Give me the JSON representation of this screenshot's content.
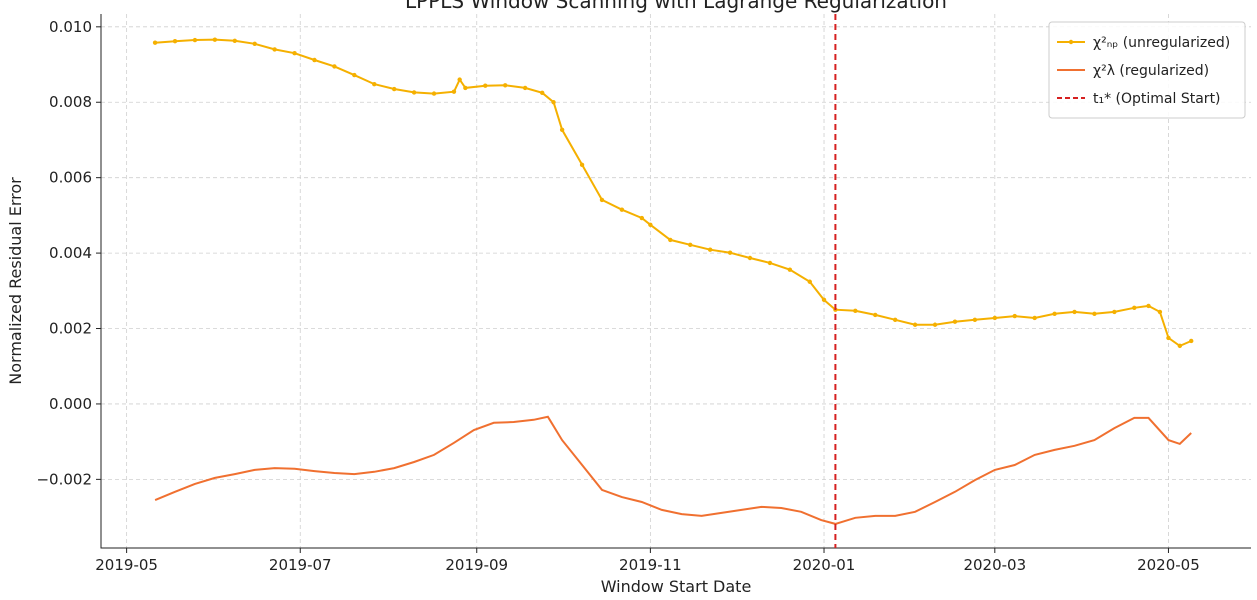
{
  "chart_data": {
    "type": "line",
    "title": "LPPLS Window Scanning with Lagrange Regularization",
    "x_label": "Window Start Date",
    "y_label": "Normalized Residual Error",
    "xlim": [
      "2019-04-22",
      "2020-05-30"
    ],
    "xticks": [
      {
        "value": "2019-05-01",
        "label": "2019-05"
      },
      {
        "value": "2019-07-01",
        "label": "2019-07"
      },
      {
        "value": "2019-09-01",
        "label": "2019-09"
      },
      {
        "value": "2019-11-01",
        "label": "2019-11"
      },
      {
        "value": "2020-01-01",
        "label": "2020-01"
      },
      {
        "value": "2020-03-01",
        "label": "2020-03"
      },
      {
        "value": "2020-05-01",
        "label": "2020-05"
      }
    ],
    "ylim": [
      -0.00382,
      0.01034
    ],
    "yticks": [
      {
        "value": -0.002,
        "label": "−0.002"
      },
      {
        "value": 0,
        "label": "0.000"
      },
      {
        "value": 0.002,
        "label": "0.002"
      },
      {
        "value": 0.004,
        "label": "0.004"
      },
      {
        "value": 0.006,
        "label": "0.006"
      },
      {
        "value": 0.008,
        "label": "0.008"
      },
      {
        "value": 0.01,
        "label": "0.010"
      }
    ],
    "grid": true,
    "legend": "upper right",
    "series": [
      {
        "name": "χ²ₙₚ (unregularized)",
        "color": "#f5b000",
        "markers": true,
        "x": [
          "2019-05-11",
          "2019-05-18",
          "2019-05-25",
          "2019-06-01",
          "2019-06-08",
          "2019-06-15",
          "2019-06-22",
          "2019-06-29",
          "2019-07-06",
          "2019-07-13",
          "2019-07-20",
          "2019-07-27",
          "2019-08-03",
          "2019-08-10",
          "2019-08-17",
          "2019-08-24",
          "2019-08-26",
          "2019-08-28",
          "2019-09-04",
          "2019-09-11",
          "2019-09-18",
          "2019-09-24",
          "2019-09-28",
          "2019-10-01",
          "2019-10-08",
          "2019-10-15",
          "2019-10-22",
          "2019-10-29",
          "2019-11-01",
          "2019-11-08",
          "2019-11-15",
          "2019-11-22",
          "2019-11-29",
          "2019-12-06",
          "2019-12-13",
          "2019-12-20",
          "2019-12-27",
          "2020-01-01",
          "2020-01-05",
          "2020-01-12",
          "2020-01-19",
          "2020-01-26",
          "2020-02-02",
          "2020-02-09",
          "2020-02-16",
          "2020-02-23",
          "2020-03-01",
          "2020-03-08",
          "2020-03-15",
          "2020-03-22",
          "2020-03-29",
          "2020-04-05",
          "2020-04-12",
          "2020-04-19",
          "2020-04-24",
          "2020-04-28",
          "2020-05-01",
          "2020-05-05",
          "2020-05-09"
        ],
        "values": [
          0.00958,
          0.00962,
          0.00965,
          0.00966,
          0.00963,
          0.00955,
          0.0094,
          0.0093,
          0.00912,
          0.00895,
          0.00872,
          0.00848,
          0.00835,
          0.00826,
          0.00823,
          0.00828,
          0.0086,
          0.00838,
          0.00844,
          0.00845,
          0.00838,
          0.00825,
          0.008,
          0.00727,
          0.00634,
          0.00541,
          0.00515,
          0.00493,
          0.00475,
          0.00435,
          0.00422,
          0.00409,
          0.00401,
          0.00387,
          0.00374,
          0.00356,
          0.00324,
          0.00276,
          0.0025,
          0.00247,
          0.00236,
          0.00223,
          0.0021,
          0.0021,
          0.00218,
          0.00223,
          0.00228,
          0.00233,
          0.00228,
          0.00239,
          0.00244,
          0.00239,
          0.00244,
          0.00255,
          0.0026,
          0.00244,
          0.00175,
          0.00154,
          0.00167
        ]
      },
      {
        "name": "χ²λ (regularized)",
        "color": "#f07030",
        "markers": false,
        "x": [
          "2019-05-11",
          "2019-05-18",
          "2019-05-25",
          "2019-06-01",
          "2019-06-08",
          "2019-06-15",
          "2019-06-22",
          "2019-06-29",
          "2019-07-06",
          "2019-07-13",
          "2019-07-20",
          "2019-07-27",
          "2019-08-03",
          "2019-08-10",
          "2019-08-17",
          "2019-08-24",
          "2019-08-31",
          "2019-09-07",
          "2019-09-14",
          "2019-09-21",
          "2019-09-26",
          "2019-10-01",
          "2019-10-08",
          "2019-10-15",
          "2019-10-22",
          "2019-10-29",
          "2019-11-05",
          "2019-11-12",
          "2019-11-19",
          "2019-11-26",
          "2019-12-03",
          "2019-12-10",
          "2019-12-17",
          "2019-12-24",
          "2019-12-31",
          "2020-01-05",
          "2020-01-12",
          "2020-01-19",
          "2020-01-26",
          "2020-02-02",
          "2020-02-09",
          "2020-02-16",
          "2020-02-23",
          "2020-03-01",
          "2020-03-08",
          "2020-03-15",
          "2020-03-22",
          "2020-03-29",
          "2020-04-05",
          "2020-04-12",
          "2020-04-19",
          "2020-04-24",
          "2020-05-01",
          "2020-05-05",
          "2020-05-09"
        ],
        "values": [
          -0.00255,
          -0.00233,
          -0.00212,
          -0.00196,
          -0.00186,
          -0.00175,
          -0.0017,
          -0.00172,
          -0.00178,
          -0.00183,
          -0.00186,
          -0.0018,
          -0.0017,
          -0.00154,
          -0.00135,
          -0.00103,
          -0.00069,
          -0.0005,
          -0.00048,
          -0.00042,
          -0.00034,
          -0.00096,
          -0.00162,
          -0.00228,
          -0.00247,
          -0.0026,
          -0.00281,
          -0.00292,
          -0.00297,
          -0.00289,
          -0.00281,
          -0.00273,
          -0.00276,
          -0.00286,
          -0.00308,
          -0.00318,
          -0.00302,
          -0.00297,
          -0.00297,
          -0.00286,
          -0.0026,
          -0.00233,
          -0.00202,
          -0.00175,
          -0.00162,
          -0.00135,
          -0.00122,
          -0.00111,
          -0.00096,
          -0.00064,
          -0.00037,
          -0.00037,
          -0.00096,
          -0.00106,
          -0.00077
        ]
      }
    ],
    "vlines": [
      {
        "x": "2020-01-05",
        "name": "t₁* (Optimal Start)",
        "color": "#d62020",
        "dashed": true
      }
    ]
  }
}
